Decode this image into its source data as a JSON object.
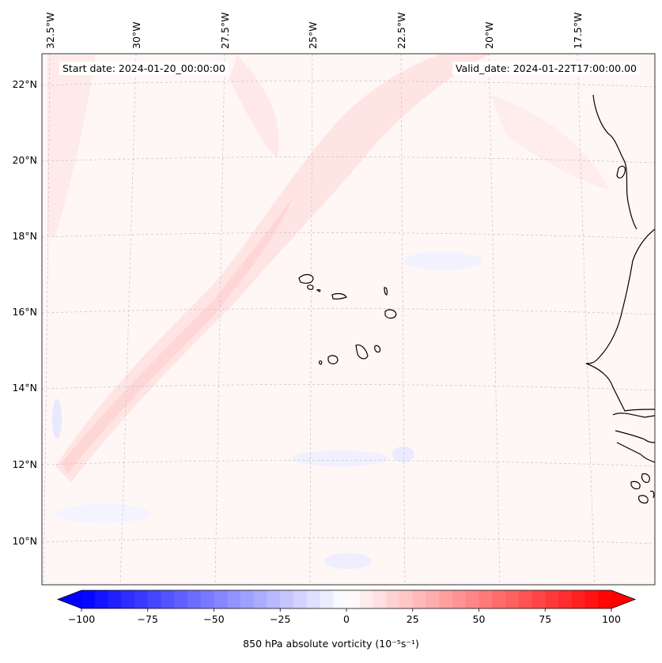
{
  "header": {
    "start_date": "Start date: 2024-01-20_00:00:00",
    "valid_date": "Valid_date: 2024-01-22T17:00:00.00"
  },
  "axes": {
    "lon_labels": [
      "32.5°W",
      "30°W",
      "27.5°W",
      "25°W",
      "22.5°W",
      "20°W",
      "17.5°W"
    ],
    "lat_labels": [
      "22°N",
      "20°N",
      "18°N",
      "16°N",
      "14°N",
      "12°N",
      "10°N"
    ]
  },
  "colorbar": {
    "label": "850 hPa absolute vorticity (10⁻⁵s⁻¹)",
    "ticks": [
      "−100",
      "−75",
      "−50",
      "−25",
      "0",
      "25",
      "50",
      "75",
      "100"
    ],
    "tick_values": [
      -100,
      -75,
      -50,
      -25,
      0,
      25,
      50,
      75,
      100
    ],
    "range": [
      -100,
      100
    ],
    "levels": 40,
    "negative_color": "#0000ff",
    "zero_color": "#ffffff",
    "positive_color": "#ff0000",
    "extend": "both"
  },
  "map": {
    "grid_lines": true,
    "background_color": "#fff7f7",
    "coastline_color": "#000000"
  }
}
